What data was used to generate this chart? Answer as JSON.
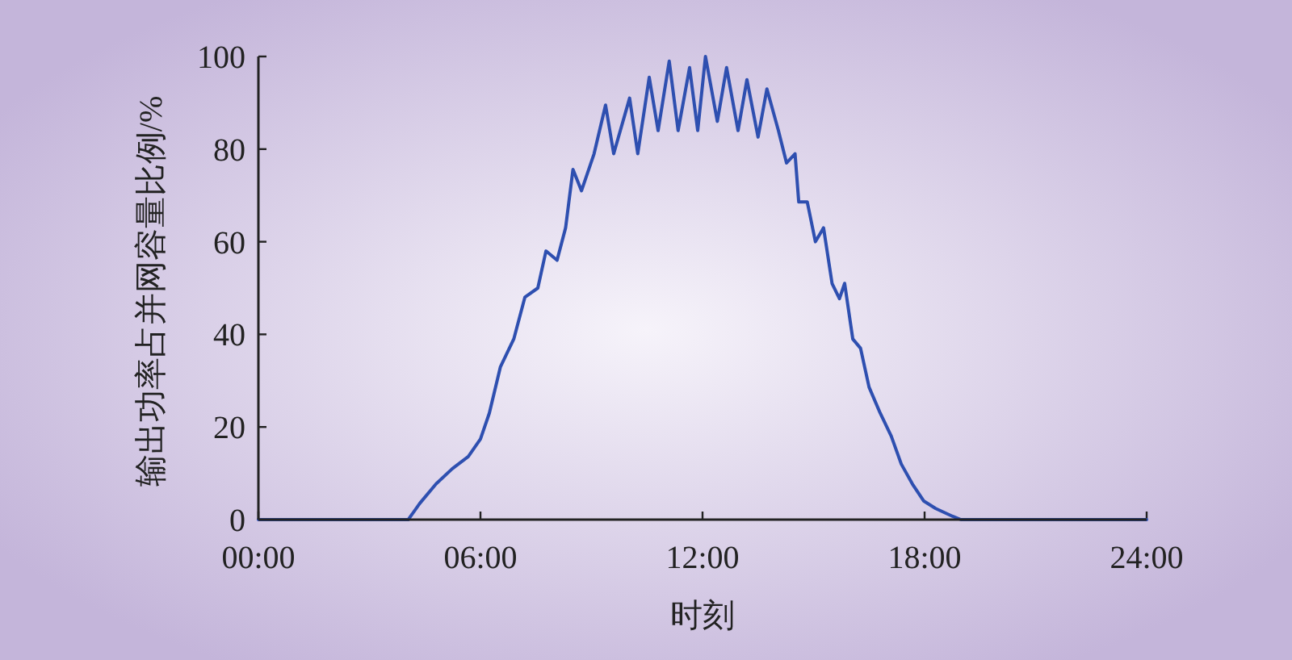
{
  "chart_data": {
    "type": "line",
    "xlabel": "时刻",
    "ylabel": "输出功率占并网容量比例/%",
    "x": [
      0,
      4.05,
      4.36,
      4.8,
      5.24,
      5.67,
      6.0,
      6.24,
      6.54,
      6.9,
      7.2,
      7.55,
      7.77,
      8.07,
      8.3,
      8.5,
      8.73,
      9.07,
      9.38,
      9.6,
      10.03,
      10.25,
      10.56,
      10.8,
      11.1,
      11.34,
      11.65,
      11.87,
      12.08,
      12.4,
      12.65,
      12.96,
      13.2,
      13.5,
      13.74,
      14.05,
      14.27,
      14.5,
      14.6,
      14.83,
      15.05,
      15.27,
      15.5,
      15.7,
      15.84,
      16.06,
      16.27,
      16.5,
      16.8,
      17.1,
      17.37,
      17.67,
      17.98,
      18.3,
      18.76,
      18.98,
      24
    ],
    "series": [
      {
        "color": "#2e4fb0",
        "values": [
          0,
          0,
          3.5,
          7.7,
          11,
          13.6,
          17.4,
          23,
          33,
          39,
          48,
          50,
          58,
          56,
          63,
          75.6,
          71,
          79,
          89.5,
          79,
          91,
          79,
          95.5,
          84,
          99,
          84,
          97.6,
          84,
          100,
          86,
          97.6,
          84,
          95,
          82.6,
          93,
          84,
          77,
          79,
          68.6,
          68.6,
          60,
          63,
          51,
          47.7,
          51,
          39,
          37,
          28.6,
          23,
          18,
          12,
          7.7,
          4,
          2.4,
          0.7,
          0,
          0
        ]
      }
    ],
    "xlim": [
      0,
      24
    ],
    "xticks": [
      {
        "value": 0,
        "label": "00:00"
      },
      {
        "value": 6,
        "label": "06:00"
      },
      {
        "value": 12,
        "label": "12:00"
      },
      {
        "value": 18,
        "label": "18:00"
      },
      {
        "value": 24,
        "label": "24:00"
      }
    ],
    "ylim": [
      0,
      100
    ],
    "yticks": [
      0,
      20,
      40,
      60,
      80,
      100
    ],
    "grid": false,
    "marker": "none",
    "line_style": "solid"
  }
}
